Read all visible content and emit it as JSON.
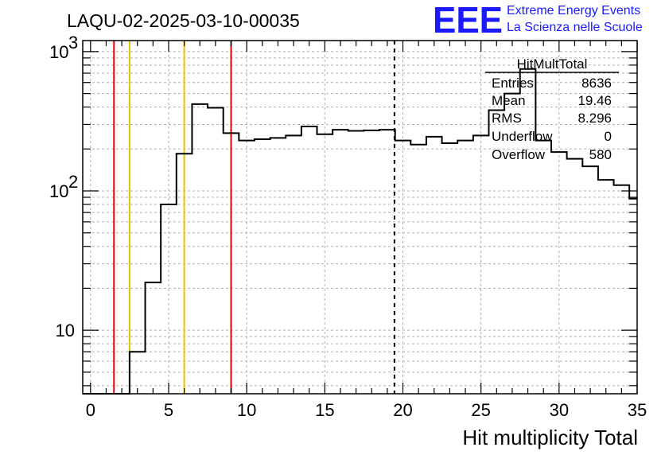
{
  "header": {
    "run_title": "LAQU-02-2025-03-10-00035",
    "logo_text": "EEE",
    "brand_line1": "Extreme Energy Events",
    "brand_line2": "La Scienza nelle Scuole"
  },
  "stats_box": {
    "title": "HitMultTotal",
    "rows": [
      {
        "label": "Entries",
        "value": "8636"
      },
      {
        "label": "Mean",
        "value": "19.46"
      },
      {
        "label": "RMS",
        "value": "8.296"
      },
      {
        "label": "Underflow",
        "value": "0"
      },
      {
        "label": "Overflow",
        "value": "580"
      }
    ]
  },
  "chart_data": {
    "type": "histogram",
    "title": "LAQU-02-2025-03-10-00035",
    "xlabel": "Hit multiplicity Total",
    "ylabel": "",
    "xlim": [
      -0.5,
      35.0
    ],
    "ylim": [
      3.5,
      1200
    ],
    "log_y": true,
    "grid": true,
    "x_ticks": [
      0,
      5,
      10,
      15,
      20,
      25,
      30,
      35
    ],
    "y_ticks": [
      {
        "value": 10,
        "label": "10"
      },
      {
        "value": 100,
        "label": "10",
        "exp": "2"
      },
      {
        "value": 1000,
        "label": "10",
        "exp": "3"
      }
    ],
    "bin_edges": [
      -0.5,
      0.5,
      1.5,
      2.5,
      3.5,
      4.5,
      5.5,
      6.5,
      7.5,
      8.5,
      9.5,
      10.5,
      11.5,
      12.5,
      13.5,
      14.5,
      15.5,
      16.5,
      17.5,
      18.5,
      19.5,
      20.5,
      21.5,
      22.5,
      23.5,
      24.5,
      25.5,
      26.5,
      27.5,
      28.5,
      29.5,
      30.5,
      31.5,
      32.5,
      33.5,
      34.5,
      35.0
    ],
    "counts": [
      0,
      0,
      0,
      7,
      22,
      80,
      185,
      420,
      395,
      260,
      230,
      235,
      240,
      250,
      290,
      255,
      275,
      270,
      272,
      275,
      230,
      215,
      245,
      220,
      230,
      250,
      380,
      500,
      750,
      230,
      190,
      170,
      150,
      120,
      110,
      88
    ],
    "vertical_lines": [
      {
        "x": 1.5,
        "color": "#e60000",
        "style": "solid"
      },
      {
        "x": 2.5,
        "color": "#f0c000",
        "style": "solid"
      },
      {
        "x": 6.0,
        "color": "#f0c000",
        "style": "solid"
      },
      {
        "x": 9.0,
        "color": "#e60000",
        "style": "solid"
      },
      {
        "x": 19.46,
        "color": "#000000",
        "style": "dashed"
      }
    ],
    "line_color": "#000000"
  }
}
